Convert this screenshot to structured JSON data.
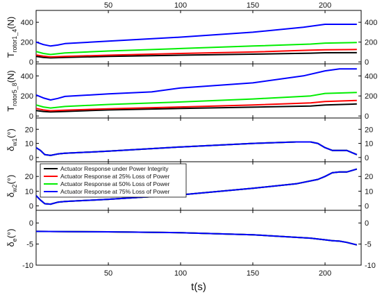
{
  "chart_data": {
    "type": "line",
    "xlabel": "t(s)",
    "xlim": [
      0,
      225
    ],
    "x_ticks": [
      50,
      100,
      150,
      200
    ],
    "legend": {
      "placement": "upper-left of fourth panel",
      "entries": [
        "Actuator Response under Power Integrity",
        "Actuator Response at 25% Loss of Power",
        "Actuator Response at 50% Loss of Power",
        "Actuator Response at 75% Loss of Power"
      ]
    },
    "colors": [
      "#000000",
      "#ff0000",
      "#00ee00",
      "#0000ff"
    ],
    "panels": [
      {
        "ylabel_main": "T",
        "ylabel_sub": "rotor1_4",
        "ylabel_unit": "(N)",
        "ylim": [
          -20,
          520
        ],
        "y_ticks": [
          0,
          200,
          400
        ],
        "y_ticklabels": [
          "0",
          "200",
          "400"
        ],
        "series": [
          {
            "x": [
              0,
              5,
              10,
              20,
              50,
              100,
              150,
              190,
              200,
              222
            ],
            "y": [
              55,
              45,
              40,
              45,
              55,
              68,
              78,
              88,
              92,
              93
            ]
          },
          {
            "x": [
              0,
              5,
              10,
              20,
              50,
              100,
              150,
              190,
              200,
              222
            ],
            "y": [
              70,
              58,
              50,
              55,
              68,
              85,
              100,
              118,
              122,
              125
            ]
          },
          {
            "x": [
              0,
              5,
              10,
              20,
              50,
              100,
              150,
              190,
              200,
              222
            ],
            "y": [
              105,
              85,
              75,
              90,
              110,
              135,
              160,
              180,
              190,
              195
            ]
          },
          {
            "x": [
              0,
              5,
              10,
              15,
              20,
              50,
              100,
              150,
              185,
              200,
              222
            ],
            "y": [
              200,
              175,
              160,
              170,
              185,
              210,
              250,
              300,
              350,
              380,
              380
            ]
          }
        ]
      },
      {
        "ylabel_main": "T",
        "ylabel_sub": "rotor5_8",
        "ylabel_unit": "(N)",
        "ylim": [
          -20,
          520
        ],
        "y_ticks": [
          0,
          200,
          400
        ],
        "y_ticklabels": [
          "0",
          "200",
          "400"
        ],
        "series": [
          {
            "x": [
              0,
              5,
              10,
              20,
              50,
              100,
              150,
              190,
              200,
              222
            ],
            "y": [
              55,
              45,
              40,
              45,
              60,
              75,
              88,
              100,
              110,
              120
            ]
          },
          {
            "x": [
              0,
              5,
              10,
              20,
              50,
              100,
              150,
              190,
              200,
              222
            ],
            "y": [
              75,
              60,
              52,
              58,
              72,
              90,
              110,
              130,
              145,
              155
            ]
          },
          {
            "x": [
              0,
              5,
              10,
              20,
              50,
              100,
              150,
              190,
              200,
              222
            ],
            "y": [
              110,
              90,
              80,
              95,
              115,
              140,
              170,
              200,
              225,
              235
            ]
          },
          {
            "x": [
              0,
              5,
              10,
              15,
              20,
              50,
              80,
              100,
              150,
              185,
              200,
              210,
              222
            ],
            "y": [
              210,
              180,
              160,
              175,
              195,
              220,
              240,
              280,
              330,
              400,
              450,
              470,
              470
            ]
          }
        ]
      },
      {
        "ylabel_main": "δ",
        "ylabel_sub": "w1",
        "ylabel_unit": "(°)",
        "ylim": [
          -3,
          28
        ],
        "y_ticks": [
          0,
          10,
          20
        ],
        "y_ticklabels": [
          "0",
          "10",
          "20"
        ],
        "series": [
          {
            "x": [
              0,
              3,
              6,
              10,
              15,
              20,
              50,
              100,
              150,
              180,
              190,
              195,
              200,
              205,
              210,
              215,
              222
            ],
            "y": [
              7,
              5,
              2,
              1.5,
              2.5,
              3,
              4.5,
              7.5,
              10,
              11,
              11,
              10,
              7,
              5,
              5,
              5,
              2
            ]
          },
          {
            "x": [
              0,
              3,
              6,
              10,
              15,
              20,
              50,
              100,
              150,
              180,
              190,
              195,
              200,
              205,
              210,
              215,
              222
            ],
            "y": [
              7,
              5,
              2,
              1.5,
              2.5,
              3,
              4.5,
              7.5,
              10,
              11,
              11,
              10,
              7,
              5,
              5,
              5,
              2
            ]
          },
          {
            "x": [
              0,
              3,
              6,
              10,
              15,
              20,
              50,
              100,
              150,
              180,
              190,
              195,
              200,
              205,
              210,
              215,
              222
            ],
            "y": [
              7,
              5,
              2,
              1.5,
              2.5,
              3,
              4.5,
              7.5,
              10,
              11,
              11,
              10,
              7,
              5,
              5,
              5,
              2
            ]
          },
          {
            "x": [
              0,
              3,
              6,
              10,
              15,
              20,
              50,
              100,
              150,
              180,
              190,
              195,
              200,
              205,
              210,
              215,
              222
            ],
            "y": [
              7,
              5,
              2,
              1.5,
              2.5,
              3,
              4.5,
              7.5,
              10,
              11,
              11,
              10,
              7,
              5,
              5,
              5,
              2
            ]
          }
        ]
      },
      {
        "ylabel_main": "δ",
        "ylabel_sub": "w2",
        "ylabel_unit": "(°)",
        "ylim": [
          -3,
          30
        ],
        "y_ticks": [
          0,
          10,
          20
        ],
        "y_ticklabels": [
          "0",
          "10",
          "20"
        ],
        "series": [
          {
            "x": [
              0,
              3,
              6,
              10,
              15,
              20,
              50,
              100,
              150,
              180,
              195,
              200,
              205,
              210,
              215,
              222
            ],
            "y": [
              7,
              4,
              1.5,
              1.2,
              2.5,
              3,
              4.5,
              7.5,
              12,
              15,
              18,
              20,
              22.5,
              23,
              23,
              25
            ]
          },
          {
            "x": [
              0,
              3,
              6,
              10,
              15,
              20,
              50,
              100,
              150,
              180,
              195,
              200,
              205,
              210,
              215,
              222
            ],
            "y": [
              7,
              4,
              1.5,
              1.2,
              2.5,
              3,
              4.5,
              7.5,
              12,
              15,
              18,
              20,
              22.5,
              23,
              23,
              25
            ]
          },
          {
            "x": [
              0,
              3,
              6,
              10,
              15,
              20,
              50,
              100,
              150,
              180,
              195,
              200,
              205,
              210,
              215,
              222
            ],
            "y": [
              7,
              4,
              1.5,
              1.2,
              2.5,
              3,
              4.5,
              7.5,
              12,
              15,
              18,
              20,
              22.5,
              23,
              23,
              25
            ]
          },
          {
            "x": [
              0,
              3,
              6,
              10,
              15,
              20,
              50,
              100,
              150,
              180,
              195,
              200,
              205,
              210,
              215,
              222
            ],
            "y": [
              7,
              4,
              1.5,
              1.2,
              2.5,
              3,
              4.5,
              7.5,
              12,
              15,
              18,
              20,
              22.5,
              23,
              23,
              25
            ]
          }
        ]
      },
      {
        "ylabel_main": "δ",
        "ylabel_sub": "e",
        "ylabel_unit": "(°)",
        "ylim": [
          -10,
          3
        ],
        "y_ticks": [
          -10,
          -5,
          0
        ],
        "y_ticklabels": [
          "-10",
          "-5",
          "0"
        ],
        "series": [
          {
            "x": [
              0,
              50,
              100,
              150,
              190,
              200,
              205,
              210,
              215,
              222
            ],
            "y": [
              -2,
              -2.1,
              -2.3,
              -2.8,
              -3.6,
              -4,
              -4.2,
              -4.3,
              -4.6,
              -5.2
            ]
          },
          {
            "x": [
              0,
              50,
              100,
              150,
              190,
              200,
              205,
              210,
              215,
              222
            ],
            "y": [
              -2,
              -2.1,
              -2.3,
              -2.8,
              -3.6,
              -4,
              -4.2,
              -4.3,
              -4.6,
              -5.2
            ]
          },
          {
            "x": [
              0,
              50,
              100,
              150,
              190,
              200,
              205,
              210,
              215,
              222
            ],
            "y": [
              -2,
              -2.1,
              -2.3,
              -2.8,
              -3.6,
              -4,
              -4.2,
              -4.3,
              -4.6,
              -5.2
            ]
          },
          {
            "x": [
              0,
              50,
              100,
              150,
              190,
              200,
              205,
              210,
              215,
              222
            ],
            "y": [
              -2,
              -2.1,
              -2.3,
              -2.8,
              -3.6,
              -4,
              -4.2,
              -4.3,
              -4.6,
              -5.2
            ]
          }
        ]
      }
    ]
  }
}
